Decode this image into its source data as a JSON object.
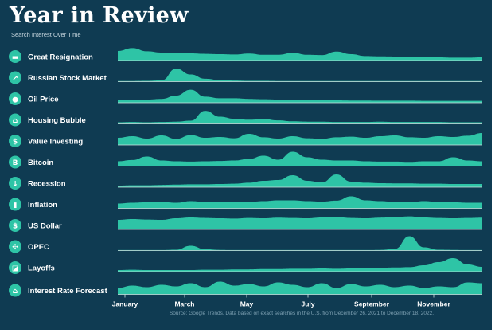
{
  "chart_data": {
    "type": "area",
    "title": "Year in Review",
    "subtitle": "Search Interest Over Time",
    "x_ticks": [
      "January",
      "March",
      "May",
      "July",
      "September",
      "November"
    ],
    "x_range": [
      "December 26, 2021",
      "December 18, 2022"
    ],
    "ylim": [
      0,
      100
    ],
    "accent": "#2ec4a6",
    "background": "#0f3b52",
    "series": [
      {
        "name": "Great Resignation",
        "icon": "briefcase-icon",
        "glyph": "▬",
        "values": [
          60,
          78,
          58,
          50,
          47,
          45,
          42,
          40,
          38,
          44,
          36,
          36,
          48,
          36,
          34,
          56,
          40,
          28,
          26,
          25,
          22,
          24,
          20,
          18,
          18,
          20
        ]
      },
      {
        "name": "Russian Stock Market",
        "icon": "trending-up-icon",
        "glyph": "↗",
        "values": [
          4,
          4,
          5,
          8,
          82,
          45,
          18,
          10,
          7,
          5,
          5,
          4,
          4,
          4,
          4,
          4,
          4,
          4,
          4,
          4,
          4,
          4,
          4,
          4,
          4,
          4
        ]
      },
      {
        "name": "Oil Price",
        "icon": "drop-icon",
        "glyph": "●",
        "values": [
          15,
          18,
          20,
          24,
          45,
          82,
          38,
          28,
          28,
          24,
          22,
          20,
          20,
          18,
          16,
          15,
          14,
          14,
          13,
          13,
          13,
          12,
          12,
          12,
          12,
          12
        ]
      },
      {
        "name": "Housing Bubble",
        "icon": "house-icon",
        "glyph": "⌂",
        "values": [
          10,
          12,
          10,
          12,
          14,
          20,
          82,
          45,
          32,
          26,
          30,
          22,
          16,
          14,
          14,
          12,
          12,
          12,
          14,
          12,
          12,
          12,
          12,
          10,
          10,
          10
        ]
      },
      {
        "name": "Value Investing",
        "icon": "money-bag-icon",
        "glyph": "$",
        "values": [
          45,
          55,
          40,
          60,
          38,
          62,
          45,
          50,
          42,
          70,
          48,
          40,
          55,
          42,
          38,
          48,
          52,
          45,
          55,
          60,
          48,
          45,
          55,
          50,
          58,
          75
        ]
      },
      {
        "name": "Bitcoin",
        "icon": "bitcoin-icon",
        "glyph": "B",
        "values": [
          30,
          38,
          60,
          35,
          30,
          28,
          30,
          32,
          35,
          45,
          65,
          40,
          90,
          55,
          40,
          35,
          35,
          30,
          28,
          28,
          26,
          30,
          30,
          55,
          35,
          30
        ]
      },
      {
        "name": "Recession",
        "icon": "down-arrow-icon",
        "glyph": "↓",
        "values": [
          10,
          12,
          12,
          14,
          16,
          18,
          18,
          20,
          22,
          28,
          40,
          45,
          75,
          40,
          30,
          80,
          35,
          28,
          25,
          24,
          24,
          22,
          22,
          20,
          20,
          20
        ]
      },
      {
        "name": "Inflation",
        "icon": "bar-chart-icon",
        "glyph": "▮",
        "values": [
          30,
          35,
          38,
          40,
          35,
          45,
          40,
          38,
          42,
          40,
          45,
          50,
          50,
          45,
          42,
          48,
          75,
          50,
          45,
          40,
          38,
          45,
          40,
          38,
          35,
          35
        ]
      },
      {
        "name": "US Dollar",
        "icon": "dollar-icon",
        "glyph": "$",
        "values": [
          60,
          65,
          62,
          60,
          70,
          75,
          72,
          70,
          68,
          72,
          70,
          74,
          72,
          70,
          75,
          78,
          72,
          70,
          74,
          76,
          82,
          75,
          72,
          70,
          72,
          74
        ]
      },
      {
        "name": "OPEC",
        "icon": "network-icon",
        "glyph": "✣",
        "values": [
          3,
          3,
          3,
          3,
          5,
          30,
          8,
          4,
          3,
          3,
          3,
          3,
          3,
          3,
          3,
          3,
          3,
          3,
          4,
          10,
          90,
          20,
          5,
          4,
          3,
          3
        ]
      },
      {
        "name": "Layoffs",
        "icon": "trend-card-icon",
        "glyph": "◪",
        "values": [
          10,
          12,
          10,
          10,
          10,
          10,
          12,
          12,
          14,
          14,
          16,
          16,
          18,
          18,
          20,
          18,
          20,
          22,
          24,
          26,
          28,
          40,
          60,
          85,
          45,
          30
        ]
      },
      {
        "name": "Interest Rate Forecast",
        "icon": "bank-icon",
        "glyph": "⌂",
        "values": [
          40,
          55,
          45,
          60,
          50,
          70,
          45,
          80,
          55,
          65,
          50,
          75,
          60,
          45,
          70,
          40,
          65,
          50,
          60,
          45,
          55,
          40,
          50,
          45,
          75,
          70
        ]
      }
    ],
    "source": "Source: Google Trends. Data based on exact searches in the U.S. from December 26, 2021 to December 18, 2022."
  }
}
